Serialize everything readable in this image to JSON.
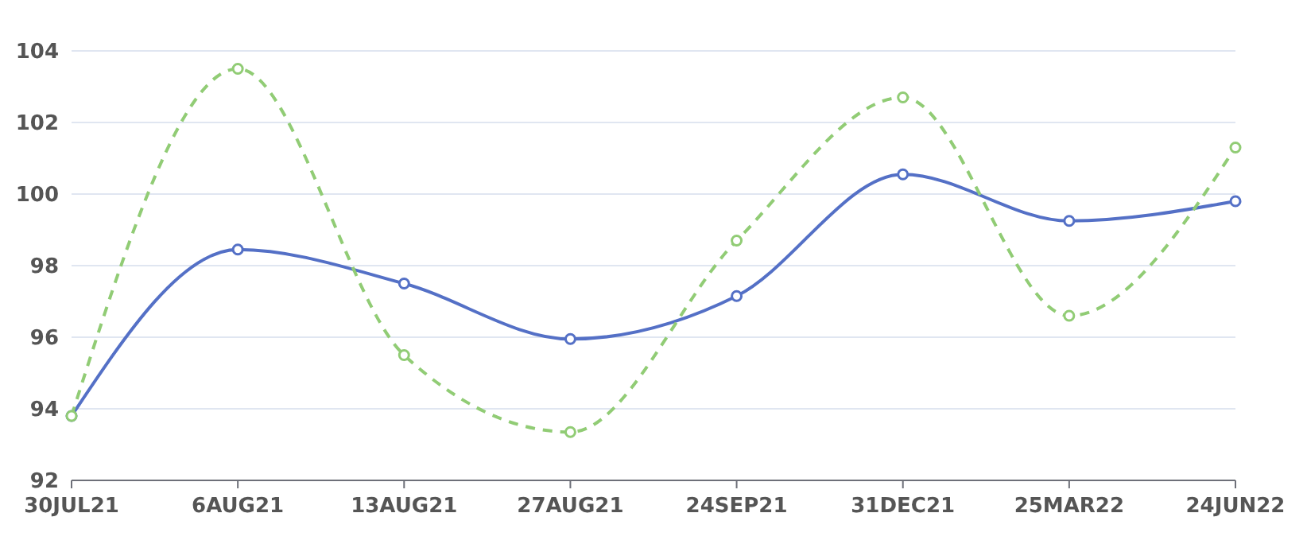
{
  "chart_data": {
    "type": "line",
    "categories": [
      "30JUL21",
      "6AUG21",
      "13AUG21",
      "27AUG21",
      "24SEP21",
      "31DEC21",
      "25MAR22",
      "24JUN22"
    ],
    "series": [
      {
        "color": "#5470c6",
        "line_style": "solid",
        "values": [
          93.8,
          98.45,
          97.5,
          95.95,
          97.15,
          100.55,
          99.25,
          99.8
        ]
      },
      {
        "color": "#91cc75",
        "line_style": "dashed",
        "values": [
          93.8,
          103.5,
          95.5,
          93.35,
          98.7,
          102.7,
          96.6,
          101.3
        ]
      }
    ],
    "ylim": [
      92,
      104
    ],
    "yticks": [
      92,
      94,
      96,
      98,
      100,
      102,
      104
    ],
    "grid": "y",
    "marker": "circle"
  }
}
